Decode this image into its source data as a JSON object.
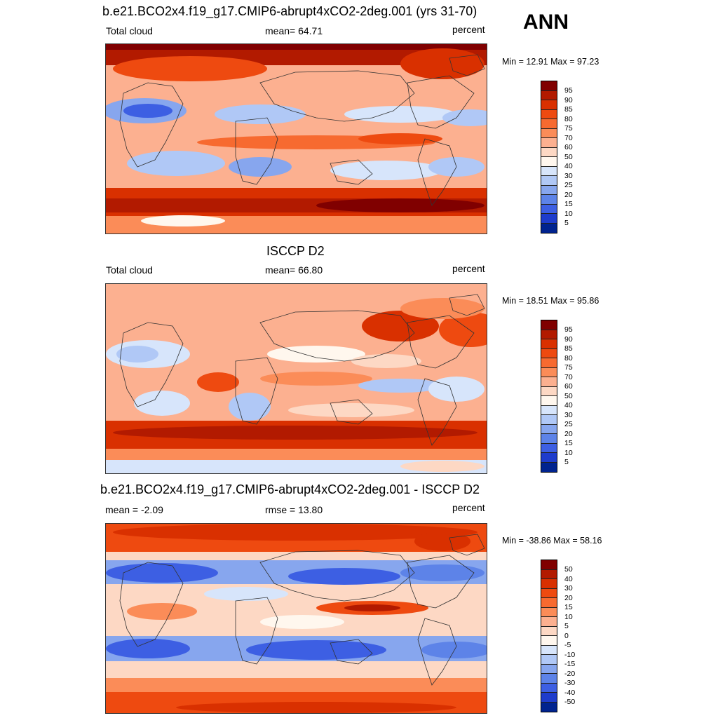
{
  "header": {
    "season": "ANN"
  },
  "panels": [
    {
      "id": "model",
      "title": "b.e21.BCO2x4.f19_g17.CMIP6-abrupt4xCO2-2deg.001 (yrs 31-70)",
      "left_label": "Total cloud",
      "center_label": "mean=  64.71",
      "units": "percent",
      "min_max": "Min =  12.91 Max =  97.23",
      "colorbar": {
        "labels": [
          "95",
          "90",
          "85",
          "80",
          "75",
          "70",
          "60",
          "50",
          "40",
          "30",
          "25",
          "20",
          "15",
          "10",
          "5"
        ],
        "colors": [
          "#800000",
          "#b21a00",
          "#d93000",
          "#ee4a10",
          "#f76a30",
          "#fb8c58",
          "#fcb090",
          "#fdd8c4",
          "#fff7ee",
          "#d7e5fb",
          "#b0c8f6",
          "#87a6ee",
          "#5d83e8",
          "#3d5fe3",
          "#1e3ccc",
          "#00238f"
        ]
      }
    },
    {
      "id": "obs",
      "title": "ISCCP D2",
      "left_label": "Total cloud",
      "center_label": "mean=  66.80",
      "units": "percent",
      "min_max": "Min =  18.51 Max =  95.86",
      "colorbar": {
        "labels": [
          "95",
          "90",
          "85",
          "80",
          "75",
          "70",
          "60",
          "50",
          "40",
          "30",
          "25",
          "20",
          "15",
          "10",
          "5"
        ],
        "colors": [
          "#800000",
          "#b21a00",
          "#d93000",
          "#ee4a10",
          "#f76a30",
          "#fb8c58",
          "#fcb090",
          "#fdd8c4",
          "#fff7ee",
          "#d7e5fb",
          "#b0c8f6",
          "#87a6ee",
          "#5d83e8",
          "#3d5fe3",
          "#1e3ccc",
          "#00238f"
        ]
      }
    },
    {
      "id": "diff",
      "title": "b.e21.BCO2x4.f19_g17.CMIP6-abrupt4xCO2-2deg.001 - ISCCP D2",
      "left_label": "mean =  -2.09",
      "center_label": "rmse =  13.80",
      "units": "percent",
      "min_max": "Min = -38.86 Max =  58.16",
      "colorbar": {
        "labels": [
          "50",
          "40",
          "30",
          "20",
          "15",
          "10",
          "5",
          "0",
          "-5",
          "-10",
          "-15",
          "-20",
          "-30",
          "-40",
          "-50"
        ],
        "colors": [
          "#800000",
          "#b21a00",
          "#d93000",
          "#ee4a10",
          "#f76a30",
          "#fb8c58",
          "#fcb090",
          "#fdd8c4",
          "#fff7ee",
          "#d7e5fb",
          "#b0c8f6",
          "#87a6ee",
          "#5d83e8",
          "#3d5fe3",
          "#1e3ccc",
          "#00238f"
        ]
      }
    }
  ]
}
